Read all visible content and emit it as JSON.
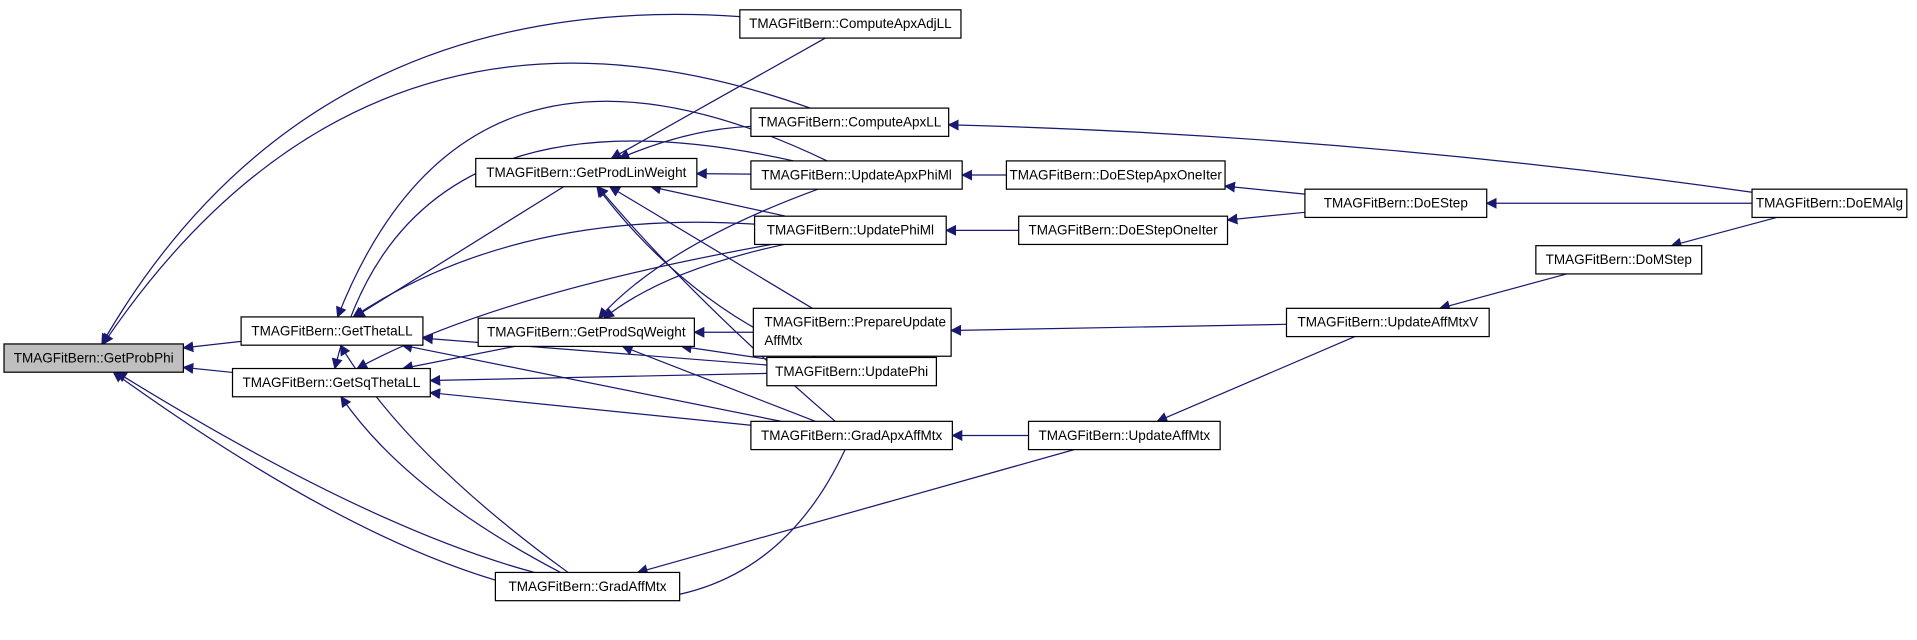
{
  "graph": {
    "focus_node": "GetProbPhi",
    "edge_color": "#191970",
    "focus_fill": "#bfbfbf",
    "nodes": {
      "GetProbPhi": [
        "TMAGFitBern::GetProbPhi"
      ],
      "GetThetaLL": [
        "TMAGFitBern::GetThetaLL"
      ],
      "GetSqThetaLL": [
        "TMAGFitBern::GetSqThetaLL"
      ],
      "GetProdLinWeight": [
        "TMAGFitBern::GetProdLinWeight"
      ],
      "GetProdSqWeight": [
        "TMAGFitBern::GetProdSqWeight"
      ],
      "GradAffMtx": [
        "TMAGFitBern::GradAffMtx"
      ],
      "ComputeApxAdjLL": [
        "TMAGFitBern::ComputeApxAdjLL"
      ],
      "ComputeApxLL": [
        "TMAGFitBern::ComputeApxLL"
      ],
      "UpdateApxPhiMl": [
        "TMAGFitBern::UpdateApxPhiMl"
      ],
      "UpdatePhiMl": [
        "TMAGFitBern::UpdatePhiMl"
      ],
      "PrepareUpdateAffMtx": [
        "TMAGFitBern::PrepareUpdate",
        "AffMtx"
      ],
      "UpdatePhi": [
        "TMAGFitBern::UpdatePhi"
      ],
      "GradApxAffMtx": [
        "TMAGFitBern::GradApxAffMtx"
      ],
      "DoEStepApxOneIter": [
        "TMAGFitBern::DoEStepApxOneIter"
      ],
      "DoEStepOneIter": [
        "TMAGFitBern::DoEStepOneIter"
      ],
      "UpdateAffMtx": [
        "TMAGFitBern::UpdateAffMtx"
      ],
      "DoEStep": [
        "TMAGFitBern::DoEStep"
      ],
      "UpdateAffMtxV": [
        "TMAGFitBern::UpdateAffMtxV"
      ],
      "DoMStep": [
        "TMAGFitBern::DoMStep"
      ],
      "DoEMAlg": [
        "TMAGFitBern::DoEMAlg"
      ]
    },
    "edges": [
      [
        "GetThetaLL",
        "GetProbPhi"
      ],
      [
        "GetSqThetaLL",
        "GetProbPhi"
      ],
      [
        "ComputeApxAdjLL",
        "GetProbPhi"
      ],
      [
        "ComputeApxLL",
        "GetProbPhi"
      ],
      [
        "GradAffMtx",
        "GetProbPhi"
      ],
      [
        "GradApxAffMtx",
        "GetProbPhi"
      ],
      [
        "GetProdLinWeight",
        "GetThetaLL"
      ],
      [
        "UpdateApxPhiMl",
        "GetThetaLL"
      ],
      [
        "UpdatePhiMl",
        "GetThetaLL"
      ],
      [
        "UpdatePhi",
        "GetThetaLL"
      ],
      [
        "GradApxAffMtx",
        "GetThetaLL"
      ],
      [
        "GradAffMtx",
        "GetThetaLL"
      ],
      [
        "GetProdSqWeight",
        "GetSqThetaLL"
      ],
      [
        "UpdatePhi",
        "GetSqThetaLL"
      ],
      [
        "GradApxAffMtx",
        "GetSqThetaLL"
      ],
      [
        "GradAffMtx",
        "GetSqThetaLL"
      ],
      [
        "UpdateApxPhiMl",
        "GetSqThetaLL"
      ],
      [
        "UpdatePhiMl",
        "GetSqThetaLL"
      ],
      [
        "ComputeApxAdjLL",
        "GetProdLinWeight"
      ],
      [
        "ComputeApxLL",
        "GetProdLinWeight"
      ],
      [
        "UpdateApxPhiMl",
        "GetProdLinWeight"
      ],
      [
        "UpdatePhiMl",
        "GetProdLinWeight"
      ],
      [
        "PrepareUpdateAffMtx",
        "GetProdLinWeight"
      ],
      [
        "UpdatePhi",
        "GetProdLinWeight"
      ],
      [
        "GradApxAffMtx",
        "GetProdLinWeight"
      ],
      [
        "UpdateApxPhiMl",
        "GetProdSqWeight"
      ],
      [
        "UpdatePhiMl",
        "GetProdSqWeight"
      ],
      [
        "PrepareUpdateAffMtx",
        "GetProdSqWeight"
      ],
      [
        "UpdatePhi",
        "GetProdSqWeight"
      ],
      [
        "GradApxAffMtx",
        "GetProdSqWeight"
      ],
      [
        "DoEStepApxOneIter",
        "UpdateApxPhiMl"
      ],
      [
        "DoEStepOneIter",
        "UpdatePhiMl"
      ],
      [
        "UpdateAffMtxV",
        "PrepareUpdateAffMtx"
      ],
      [
        "UpdateAffMtx",
        "GradApxAffMtx"
      ],
      [
        "UpdateAffMtx",
        "GradAffMtx"
      ],
      [
        "DoEStep",
        "DoEStepApxOneIter"
      ],
      [
        "DoEStep",
        "DoEStepOneIter"
      ],
      [
        "UpdateAffMtxV",
        "UpdateAffMtx"
      ],
      [
        "DoEMAlg",
        "ComputeApxLL"
      ],
      [
        "DoEMAlg",
        "DoEStep"
      ],
      [
        "DoEMAlg",
        "DoMStep"
      ],
      [
        "DoMStep",
        "UpdateAffMtxV"
      ]
    ]
  }
}
